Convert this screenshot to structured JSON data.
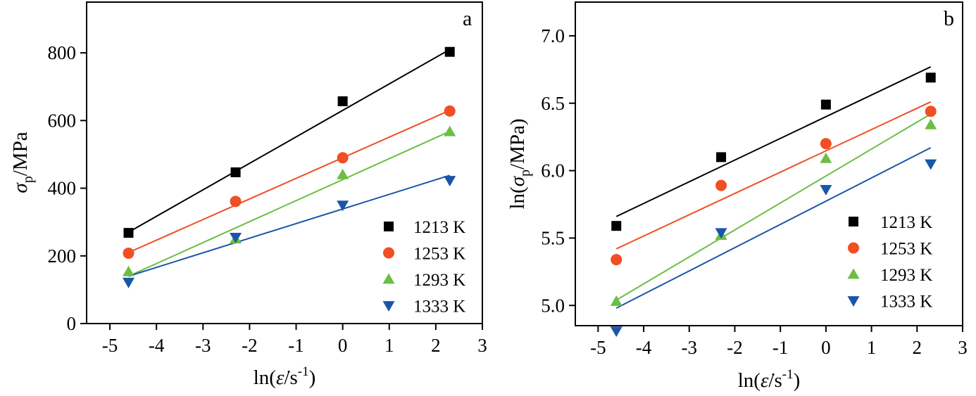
{
  "colors": {
    "1213 K": "#000000",
    "1253 K": "#f04e23",
    "1293 K": "#6cbe45",
    "1333 K": "#1a56a8"
  },
  "chart_data": [
    {
      "type": "scatter",
      "panel_letter": "a",
      "xlabel_prefix": "ln(",
      "xlabel_symbol": "ε̇",
      "xlabel_unit": "/s",
      "xlabel_sup": "-1",
      "xlabel_suffix": ")",
      "ylabel_symbol": "σ",
      "ylabel_sub": "p",
      "ylabel_unit": "/MPa",
      "xlim": [
        -5.5,
        3
      ],
      "ylim": [
        0,
        950
      ],
      "xticks": [
        -5,
        -4,
        -3,
        -2,
        -1,
        0,
        1,
        2,
        3
      ],
      "yticks": [
        0,
        200,
        400,
        600,
        800
      ],
      "legend_position": "bottom-right",
      "grid": false,
      "series": [
        {
          "name": "1213 K",
          "marker": "square",
          "x": [
            -4.6,
            -2.3,
            0,
            2.3
          ],
          "y": [
            268,
            447,
            657,
            803
          ],
          "fit": [
            [
              -4.6,
              270
            ],
            [
              2.3,
              810
            ]
          ]
        },
        {
          "name": "1253 K",
          "marker": "circle",
          "x": [
            -4.6,
            -2.3,
            0,
            2.3
          ],
          "y": [
            208,
            361,
            490,
            628
          ],
          "fit": [
            [
              -4.6,
              210
            ],
            [
              2.3,
              630
            ]
          ]
        },
        {
          "name": "1293 K",
          "marker": "triangle-up",
          "x": [
            -4.6,
            -2.3,
            0,
            2.3
          ],
          "y": [
            153,
            250,
            440,
            567
          ],
          "fit": [
            [
              -4.6,
              140
            ],
            [
              2.3,
              568
            ]
          ]
        },
        {
          "name": "1333 K",
          "marker": "triangle-down",
          "x": [
            -4.6,
            -2.3,
            0,
            2.3
          ],
          "y": [
            122,
            255,
            350,
            423
          ],
          "fit": [
            [
              -4.6,
              140
            ],
            [
              2.3,
              438
            ]
          ]
        }
      ]
    },
    {
      "type": "scatter",
      "panel_letter": "b",
      "xlabel_prefix": "ln(",
      "xlabel_symbol": "ε̇",
      "xlabel_unit": "/s",
      "xlabel_sup": "-1",
      "xlabel_suffix": ")",
      "ylabel_prefix": "ln(",
      "ylabel_symbol": "σ",
      "ylabel_sub": "p",
      "ylabel_unit": "/MPa)",
      "xlim": [
        -5.5,
        3
      ],
      "ylim": [
        4.85,
        7.25
      ],
      "xticks": [
        -5,
        -4,
        -3,
        -2,
        -1,
        0,
        1,
        2,
        3
      ],
      "yticks": [
        "5.0",
        "5.5",
        "6.0",
        "6.5",
        "7.0"
      ],
      "legend_position": "bottom-right",
      "grid": false,
      "series": [
        {
          "name": "1213 K",
          "marker": "square",
          "x": [
            -4.6,
            -2.3,
            0,
            2.3
          ],
          "y": [
            5.59,
            6.1,
            6.49,
            6.69
          ],
          "fit": [
            [
              -4.6,
              5.66
            ],
            [
              2.3,
              6.77
            ]
          ]
        },
        {
          "name": "1253 K",
          "marker": "circle",
          "x": [
            -4.6,
            -2.3,
            0,
            2.3
          ],
          "y": [
            5.34,
            5.89,
            6.2,
            6.44
          ],
          "fit": [
            [
              -4.6,
              5.42
            ],
            [
              2.3,
              6.51
            ]
          ]
        },
        {
          "name": "1293 K",
          "marker": "triangle-up",
          "x": [
            -4.6,
            -2.3,
            0,
            2.3
          ],
          "y": [
            5.03,
            5.52,
            6.09,
            6.34
          ],
          "fit": [
            [
              -4.6,
              5.04
            ],
            [
              2.3,
              6.42
            ]
          ]
        },
        {
          "name": "1333 K",
          "marker": "triangle-down",
          "x": [
            -4.6,
            -2.3,
            0,
            2.3
          ],
          "y": [
            4.81,
            5.54,
            5.86,
            6.05
          ],
          "fit": [
            [
              -4.6,
              4.98
            ],
            [
              2.3,
              6.17
            ]
          ]
        }
      ]
    }
  ]
}
